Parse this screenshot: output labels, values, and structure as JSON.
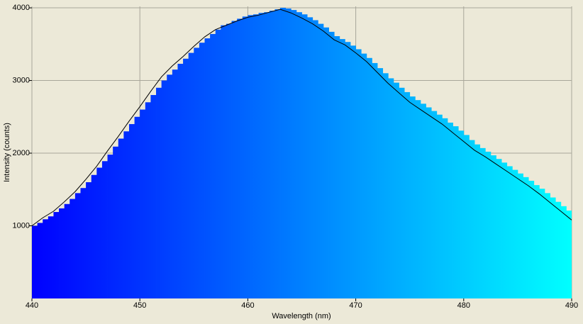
{
  "chart_data": {
    "type": "spectrum",
    "x_label": "Wavelength (nm)",
    "y_label": "Intensity (counts)",
    "xlim": [
      440,
      490
    ],
    "ylim": [
      0,
      4020
    ],
    "xticks": [
      440,
      450,
      460,
      470,
      480,
      490
    ],
    "yticks": [
      1000,
      2000,
      3000,
      4000
    ],
    "grid": true,
    "bars": {
      "x": [
        440,
        440.5,
        441,
        441.5,
        442,
        442.5,
        443,
        443.5,
        444,
        444.5,
        445,
        445.5,
        446,
        446.5,
        447,
        447.5,
        448,
        448.5,
        449,
        449.5,
        450,
        450.5,
        451,
        451.5,
        452,
        452.5,
        453,
        453.5,
        454,
        454.5,
        455,
        455.5,
        456,
        456.5,
        457,
        457.5,
        458,
        458.5,
        459,
        459.5,
        460,
        460.5,
        461,
        461.5,
        462,
        462.5,
        463,
        463.5,
        464,
        464.5,
        465,
        465.5,
        466,
        466.5,
        467,
        467.5,
        468,
        468.5,
        469,
        469.5,
        470,
        470.5,
        471,
        471.5,
        472,
        472.5,
        473,
        473.5,
        474,
        474.5,
        475,
        475.5,
        476,
        476.5,
        477,
        477.5,
        478,
        478.5,
        479,
        479.5,
        480,
        480.5,
        481,
        481.5,
        482,
        482.5,
        483,
        483.5,
        484,
        484.5,
        485,
        485.5,
        486,
        486.5,
        487,
        487.5,
        488,
        488.5,
        489,
        489.5,
        490
      ],
      "values": [
        1000,
        1040,
        1090,
        1130,
        1190,
        1240,
        1300,
        1370,
        1450,
        1520,
        1600,
        1700,
        1800,
        1890,
        1980,
        2090,
        2200,
        2300,
        2400,
        2500,
        2600,
        2700,
        2800,
        2900,
        3000,
        3080,
        3150,
        3230,
        3300,
        3380,
        3450,
        3520,
        3580,
        3640,
        3700,
        3760,
        3780,
        3820,
        3850,
        3880,
        3900,
        3910,
        3930,
        3940,
        3960,
        3980,
        4000,
        3990,
        3970,
        3940,
        3910,
        3870,
        3830,
        3780,
        3730,
        3670,
        3610,
        3570,
        3530,
        3480,
        3430,
        3370,
        3310,
        3240,
        3170,
        3100,
        3030,
        2970,
        2900,
        2840,
        2780,
        2730,
        2680,
        2630,
        2580,
        2530,
        2480,
        2420,
        2370,
        2310,
        2250,
        2180,
        2120,
        2070,
        2020,
        1970,
        1920,
        1870,
        1820,
        1770,
        1720,
        1670,
        1620,
        1560,
        1510,
        1450,
        1390,
        1330,
        1270,
        1210,
        1150
      ]
    },
    "line": {
      "color": "#000000",
      "x": [
        440,
        441,
        442,
        443,
        444,
        445,
        446,
        447,
        448,
        449,
        450,
        451,
        452,
        453,
        454,
        455,
        456,
        457,
        458,
        459,
        460,
        461,
        462,
        463,
        464,
        465,
        466,
        467,
        468,
        469,
        470,
        471,
        472,
        473,
        474,
        475,
        476,
        477,
        478,
        479,
        480,
        481,
        482,
        483,
        484,
        485,
        486,
        487,
        488,
        489,
        490
      ],
      "values": [
        1000,
        1110,
        1200,
        1330,
        1470,
        1640,
        1820,
        2030,
        2230,
        2440,
        2640,
        2850,
        3050,
        3200,
        3330,
        3470,
        3600,
        3700,
        3760,
        3820,
        3870,
        3900,
        3940,
        3980,
        3930,
        3860,
        3780,
        3680,
        3560,
        3490,
        3380,
        3260,
        3110,
        2960,
        2830,
        2700,
        2600,
        2500,
        2400,
        2280,
        2160,
        2040,
        1950,
        1850,
        1750,
        1650,
        1550,
        1440,
        1320,
        1200,
        1080
      ]
    }
  }
}
